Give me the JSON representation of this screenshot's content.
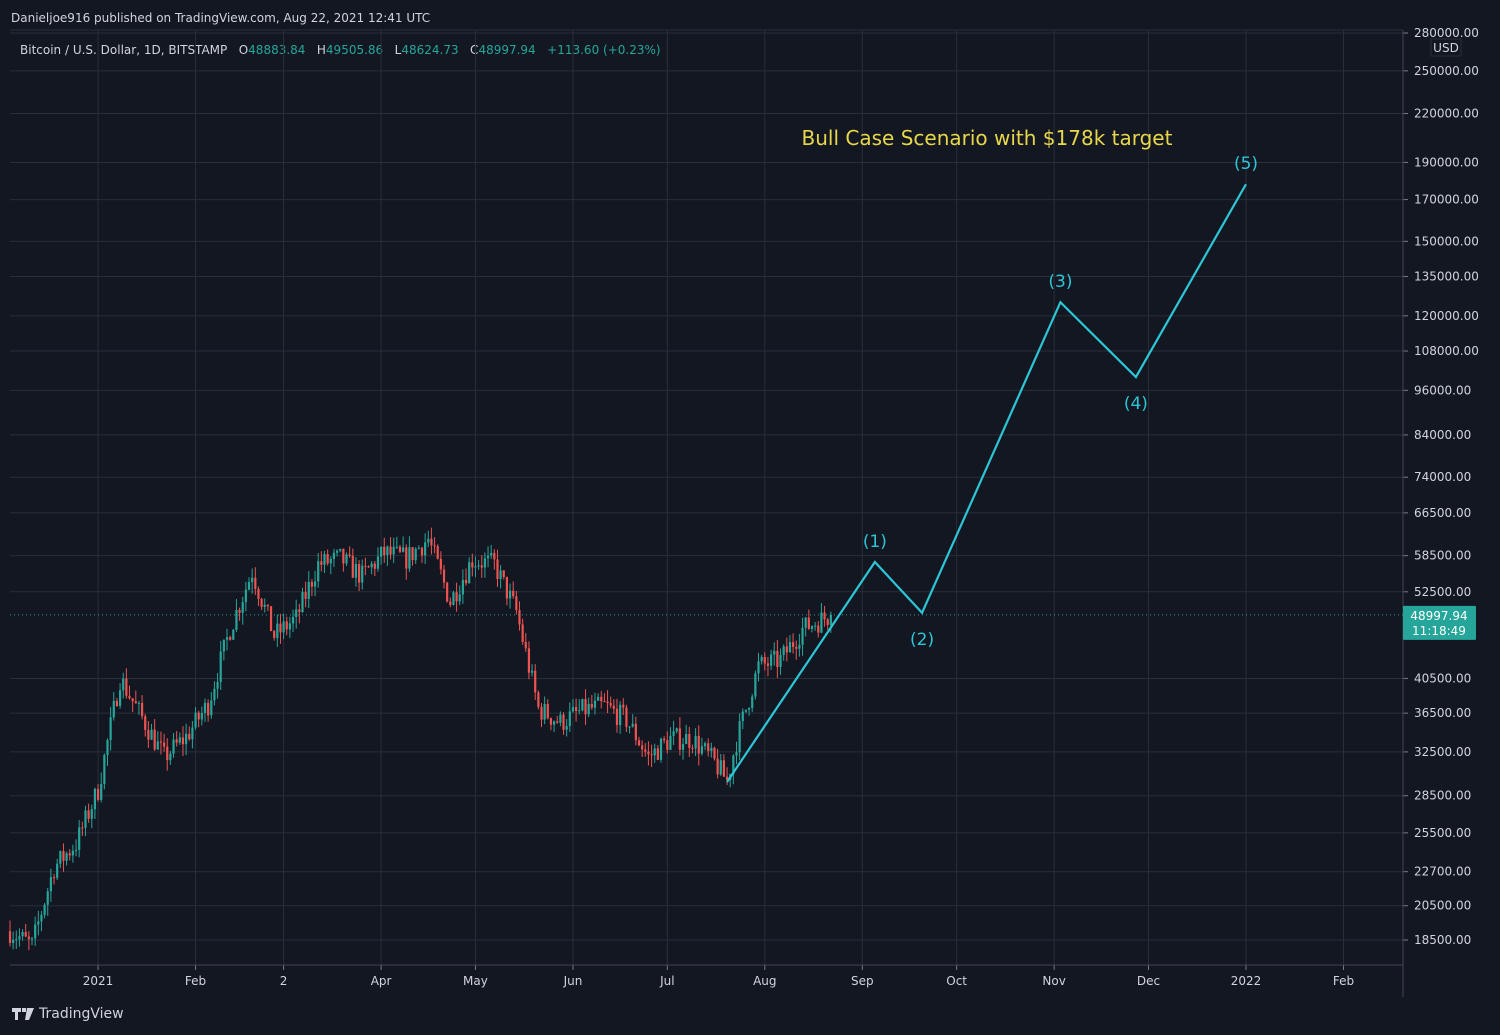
{
  "header": {
    "published": "Danieljoe916 published on TradingView.com, Aug 22, 2021 12:41 UTC",
    "symbol": "Bitcoin / U.S. Dollar, 1D, BITSTAMP",
    "open_label": "O",
    "open": "48883.84",
    "high_label": "H",
    "high": "49505.86",
    "low_label": "L",
    "low": "48624.73",
    "close_label": "C",
    "close": "48997.94",
    "change": "+113.60",
    "change_pct": "(+0.23%)"
  },
  "price_axis": {
    "currency": "USD",
    "last_price": "48997.94",
    "countdown": "11:18:49"
  },
  "footer": {
    "brand": "TradingView",
    "logo_icon": "tradingview-logo-icon"
  },
  "colors": {
    "background": "#131722",
    "grid": "#2a2e39",
    "up": "#26a69a",
    "down": "#ef5350",
    "projection": "#2dc6d6",
    "annotation": "#e8d74a",
    "text": "#d1d4dc"
  },
  "chart_data": {
    "type": "candlestick",
    "title": "",
    "annotation": "Bull Case Scenario with $178k target",
    "y_scale": "log",
    "ylim": [
      17500,
      285000
    ],
    "xlim": [
      "2020-12-04",
      "2022-02-28"
    ],
    "grid": true,
    "y_ticks": [
      280000,
      250000,
      220000,
      190000,
      170000,
      150000,
      135000,
      120000,
      108000,
      96000,
      84000,
      74000,
      66500,
      58500,
      52500,
      40500,
      36500,
      32500,
      28500,
      25500,
      22700,
      20500,
      18500
    ],
    "y_tick_labels": [
      "280000.00",
      "250000.00",
      "220000.00",
      "190000.00",
      "170000.00",
      "150000.00",
      "135000.00",
      "120000.00",
      "108000.00",
      "96000.00",
      "84000.00",
      "74000.00",
      "66500.00",
      "58500.00",
      "52500.00",
      "40500.00",
      "36500.00",
      "32500.00",
      "28500.00",
      "25500.00",
      "22700.00",
      "20500.00",
      "18500.00"
    ],
    "x_ticks": [
      {
        "date": "2021-01-01",
        "label": "2021"
      },
      {
        "date": "2021-02-01",
        "label": "Feb"
      },
      {
        "date": "2021-03-01",
        "label": "2"
      },
      {
        "date": "2021-04-01",
        "label": "Apr"
      },
      {
        "date": "2021-05-01",
        "label": "May"
      },
      {
        "date": "2021-06-01",
        "label": "Jun"
      },
      {
        "date": "2021-07-01",
        "label": "Jul"
      },
      {
        "date": "2021-08-01",
        "label": "Aug"
      },
      {
        "date": "2021-09-01",
        "label": "Sep"
      },
      {
        "date": "2021-10-01",
        "label": "Oct"
      },
      {
        "date": "2021-11-01",
        "label": "Nov"
      },
      {
        "date": "2021-12-01",
        "label": "Dec"
      },
      {
        "date": "2022-01-01",
        "label": "2022"
      },
      {
        "date": "2022-02-01",
        "label": "Feb"
      }
    ],
    "price_series": {
      "dates": [
        "2020-12-04",
        "2020-12-11",
        "2020-12-18",
        "2020-12-25",
        "2021-01-01",
        "2021-01-08",
        "2021-01-15",
        "2021-01-22",
        "2021-01-29",
        "2021-02-05",
        "2021-02-12",
        "2021-02-19",
        "2021-02-26",
        "2021-03-05",
        "2021-03-12",
        "2021-03-19",
        "2021-03-26",
        "2021-04-02",
        "2021-04-09",
        "2021-04-16",
        "2021-04-23",
        "2021-04-30",
        "2021-05-07",
        "2021-05-14",
        "2021-05-21",
        "2021-05-28",
        "2021-06-04",
        "2021-06-11",
        "2021-06-18",
        "2021-06-25",
        "2021-07-02",
        "2021-07-09",
        "2021-07-16",
        "2021-07-20",
        "2021-07-23",
        "2021-07-30",
        "2021-08-06",
        "2021-08-13",
        "2021-08-22"
      ],
      "close": [
        19000,
        18200,
        23000,
        24700,
        29000,
        40500,
        36000,
        32000,
        34000,
        37500,
        47000,
        55800,
        46000,
        48500,
        57000,
        58000,
        55000,
        59000,
        58000,
        61500,
        51000,
        57800,
        57000,
        49500,
        37000,
        35500,
        36800,
        37300,
        35800,
        32000,
        33800,
        33800,
        31500,
        29800,
        33600,
        42000,
        42800,
        47000,
        48998
      ]
    },
    "projection": {
      "points": [
        {
          "label": "",
          "date": "2021-07-20",
          "value": 29700
        },
        {
          "label": "(1)",
          "date": "2021-09-05",
          "value": 57400
        },
        {
          "label": "(2)",
          "date": "2021-09-20",
          "value": 49300
        },
        {
          "label": "(3)",
          "date": "2021-11-03",
          "value": 125000
        },
        {
          "label": "(4)",
          "date": "2021-11-27",
          "value": 99900
        },
        {
          "label": "(5)",
          "date": "2022-01-01",
          "value": 178000
        }
      ]
    },
    "last_price_line": 48997.94
  }
}
